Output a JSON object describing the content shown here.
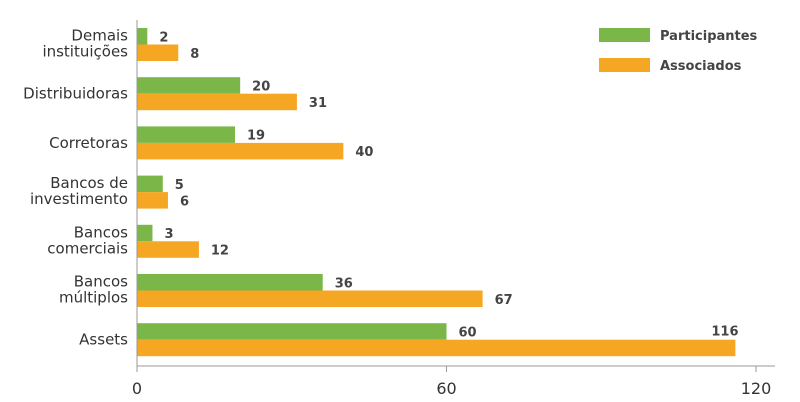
{
  "chart_data": {
    "type": "bar",
    "orientation": "horizontal",
    "categories": [
      "Demais\ninstituições",
      "Distribuidoras",
      "Corretoras",
      "Bancos de\ninvestimento",
      "Bancos\ncomerciais",
      "Bancos\nmúltiplos",
      "Assets"
    ],
    "series": [
      {
        "name": "Participantes",
        "color": "#7ab648",
        "values": [
          2,
          20,
          19,
          5,
          3,
          36,
          60
        ]
      },
      {
        "name": "Associados",
        "color": "#f5a623",
        "values": [
          8,
          31,
          40,
          6,
          12,
          67,
          116
        ]
      }
    ],
    "xlim": [
      0,
      120
    ],
    "xticks": [
      0,
      60,
      120
    ],
    "grid": false,
    "legend": "top-right",
    "title": "",
    "xlabel": "",
    "ylabel": ""
  }
}
